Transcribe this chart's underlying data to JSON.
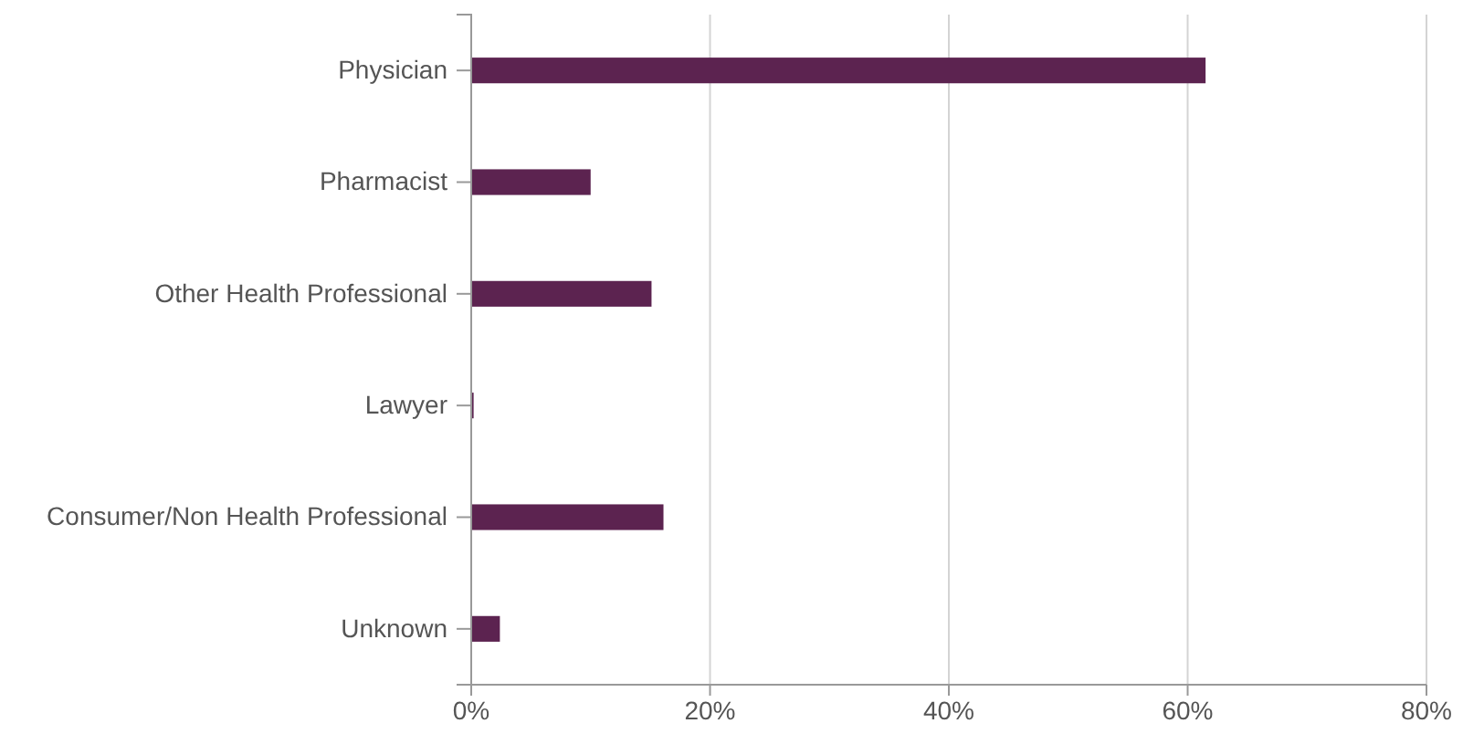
{
  "chart_data": {
    "type": "bar",
    "orientation": "horizontal",
    "categories": [
      "Physician",
      "Pharmacist",
      "Other Health Professional",
      "Lawyer",
      "Consumer/Non Health Professional",
      "Unknown"
    ],
    "values": [
      61.5,
      10.0,
      15.1,
      0.2,
      16.1,
      2.4
    ],
    "color": "#5c2350",
    "xlim": [
      0,
      80
    ],
    "xticks": [
      {
        "value": 0,
        "label": "0%"
      },
      {
        "value": 20,
        "label": "20%"
      },
      {
        "value": 40,
        "label": "40%"
      },
      {
        "value": 60,
        "label": "60%"
      },
      {
        "value": 80,
        "label": "80%"
      }
    ],
    "grid": "x"
  }
}
